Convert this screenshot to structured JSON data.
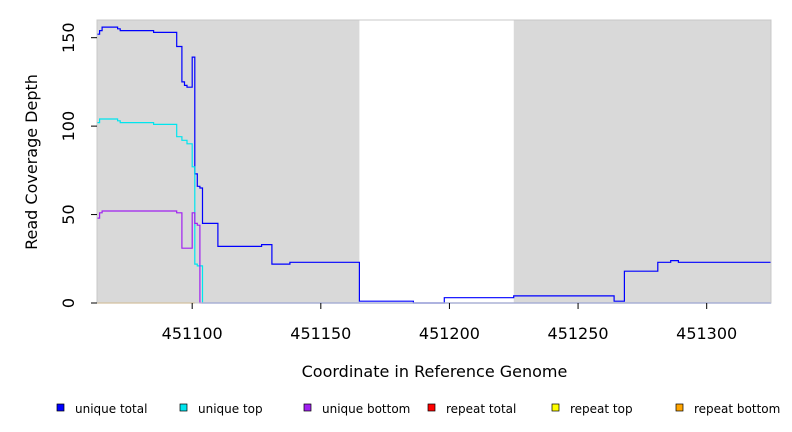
{
  "chart_data": {
    "type": "line",
    "xlabel": "Coordinate in Reference Genome",
    "ylabel": "Read Coverage Depth",
    "xlim": [
      451063,
      451325
    ],
    "ylim": [
      0,
      160
    ],
    "x_ticks": [
      451100,
      451150,
      451200,
      451250,
      451300
    ],
    "x_tick_labels": [
      "451100",
      "451150",
      "451200",
      "451250",
      "451300"
    ],
    "y_ticks": [
      0,
      50,
      100,
      150
    ],
    "y_tick_labels": [
      "0",
      "50",
      "100",
      "150"
    ],
    "grid": false,
    "background_color": "#d9d9d9",
    "highlight_region": {
      "x": [
        451165,
        451225
      ],
      "color": "#ffffff"
    },
    "legend_position": "bottom",
    "legend": [
      {
        "label": "unique total",
        "color": "#0000ff"
      },
      {
        "label": "unique top",
        "color": "#00e5ee"
      },
      {
        "label": "unique bottom",
        "color": "#a020f0"
      },
      {
        "label": "repeat total",
        "color": "#ff0000"
      },
      {
        "label": "repeat top",
        "color": "#ffff00"
      },
      {
        "label": "repeat bottom",
        "color": "#ffa500"
      }
    ],
    "series": [
      {
        "name": "unique total",
        "color": "#0000ff",
        "step": true,
        "points": [
          [
            451063,
            152
          ],
          [
            451064,
            154
          ],
          [
            451065,
            156
          ],
          [
            451071,
            155
          ],
          [
            451072,
            154
          ],
          [
            451085,
            153
          ],
          [
            451094,
            145
          ],
          [
            451096,
            125
          ],
          [
            451097,
            123
          ],
          [
            451098,
            122
          ],
          [
            451100,
            139
          ],
          [
            451101,
            73
          ],
          [
            451102,
            66
          ],
          [
            451103,
            65
          ],
          [
            451104,
            45
          ],
          [
            451110,
            32
          ],
          [
            451127,
            33
          ],
          [
            451131,
            22
          ],
          [
            451138,
            23
          ],
          [
            451165,
            1
          ],
          [
            451186,
            0
          ],
          [
            451198,
            3
          ],
          [
            451225,
            4
          ],
          [
            451264,
            1
          ],
          [
            451268,
            18
          ],
          [
            451281,
            23
          ],
          [
            451286,
            24
          ],
          [
            451289,
            23
          ],
          [
            451325,
            23
          ]
        ]
      },
      {
        "name": "unique top",
        "color": "#00e5ee",
        "step": true,
        "points": [
          [
            451063,
            102
          ],
          [
            451064,
            104
          ],
          [
            451071,
            103
          ],
          [
            451072,
            102
          ],
          [
            451085,
            101
          ],
          [
            451094,
            94
          ],
          [
            451096,
            92
          ],
          [
            451098,
            90
          ],
          [
            451100,
            77
          ],
          [
            451101,
            22
          ],
          [
            451102,
            21
          ],
          [
            451104,
            0
          ],
          [
            451325,
            0
          ]
        ]
      },
      {
        "name": "unique bottom",
        "color": "#a020f0",
        "step": true,
        "points": [
          [
            451063,
            48
          ],
          [
            451064,
            51
          ],
          [
            451065,
            52
          ],
          [
            451094,
            51
          ],
          [
            451096,
            31
          ],
          [
            451100,
            51
          ],
          [
            451101,
            45
          ],
          [
            451102,
            44
          ],
          [
            451103,
            0
          ],
          [
            451325,
            0
          ]
        ]
      },
      {
        "name": "repeat bottom",
        "color": "#ffa500",
        "step": true,
        "points": [
          [
            451063,
            0
          ],
          [
            451101,
            0
          ]
        ]
      }
    ]
  }
}
